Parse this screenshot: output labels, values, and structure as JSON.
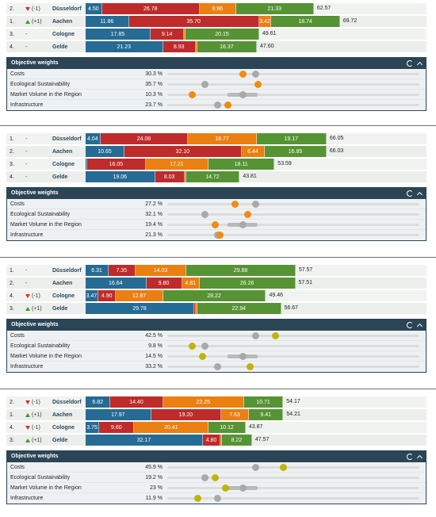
{
  "panel": {
    "title": "Objective weights",
    "refresh_icon": "refresh-icon",
    "collapse_icon": "chevron-up-icon"
  },
  "colors": {
    "costs": "#266b94",
    "ecological": "#be2b2b",
    "market": "#ea7f12",
    "infrastructure": "#569334",
    "purple": "#6b4a9e"
  },
  "sections": [
    {
      "rankings": [
        {
          "rank": "2.",
          "change": "(-1)",
          "direction": "down",
          "city": "Düsseldorf",
          "segments": [
            "4.50",
            "26.78",
            "9.96",
            "21.33"
          ],
          "total": "62.57"
        },
        {
          "rank": "1.",
          "change": "(+1)",
          "direction": "up",
          "city": "Aachen",
          "segments": [
            "11.86",
            "35.70",
            "3.42",
            "18.74"
          ],
          "total": "69.72"
        },
        {
          "rank": "3.",
          "change": "-",
          "direction": "none",
          "city": "Cologne",
          "segments": [
            "17.85",
            "9.14",
            "",
            "20.15"
          ],
          "total": "49.61"
        },
        {
          "rank": "4.",
          "change": "-",
          "direction": "none",
          "city": "Gelde",
          "segments": [
            "21.23",
            "8.93",
            "",
            "16.37"
          ],
          "total": "47.60"
        }
      ],
      "weights": [
        {
          "label": "Costs",
          "value": "30.3 %",
          "dot": 0.3,
          "ref": 0.35
        },
        {
          "label": "Ecological Sustainability",
          "value": "35.7 %",
          "dot": 0.36,
          "ref": 0.15
        },
        {
          "label": "Market Volume in the Region",
          "value": "10.3 %",
          "dot": 0.1,
          "ref": 0.3
        },
        {
          "label": "Infrastructure",
          "value": "23.7 %",
          "dot": 0.24,
          "ref": 0.2
        }
      ]
    },
    {
      "rankings": [
        {
          "rank": "1.",
          "change": "-",
          "direction": "none",
          "city": "Düsseldorf",
          "segments": [
            "4.04",
            "24.08",
            "18.77",
            "19.17"
          ],
          "total": "66.05"
        },
        {
          "rank": "2.",
          "change": "-",
          "direction": "none",
          "city": "Aachen",
          "segments": [
            "10.65",
            "32.10",
            "6.44",
            "16.85"
          ],
          "total": "66.03"
        },
        {
          "rank": "3.",
          "change": "-",
          "direction": "none",
          "city": "Cologne",
          "segments": [
            "",
            "16.05",
            "17.21",
            "18.11"
          ],
          "total": "53.59"
        },
        {
          "rank": "4.",
          "change": "-",
          "direction": "none",
          "city": "Gelde",
          "segments": [
            "19.06",
            "8.03",
            "",
            "14.72"
          ],
          "total": "43.81"
        }
      ],
      "weights": [
        {
          "label": "Costs",
          "value": "27.2 %",
          "dot": 0.27,
          "ref": 0.35
        },
        {
          "label": "Ecological Sustainability",
          "value": "32.1 %",
          "dot": 0.32,
          "ref": 0.15
        },
        {
          "label": "Market Volume in the Region",
          "value": "19.4 %",
          "dot": 0.19,
          "ref": 0.3
        },
        {
          "label": "Infrastructure",
          "value": "21.3 %",
          "dot": 0.21,
          "ref": 0.2
        }
      ]
    },
    {
      "rankings": [
        {
          "rank": "1.",
          "change": "-",
          "direction": "none",
          "city": "Düsseldorf",
          "segments": [
            "6.31",
            "7.35",
            "14.03",
            "29.88"
          ],
          "total": "57.57"
        },
        {
          "rank": "2.",
          "change": "-",
          "direction": "none",
          "city": "Aachen",
          "segments": [
            "16.64",
            "9.80",
            "4.81",
            "26.26"
          ],
          "total": "57.51"
        },
        {
          "rank": "4.",
          "change": "(-1)",
          "direction": "down",
          "city": "Cologne",
          "segments": [
            "3.47",
            "4.90",
            "12.87",
            "28.22"
          ],
          "total": "49.46"
        },
        {
          "rank": "3.",
          "change": "(+1)",
          "direction": "up",
          "city": "Gelde",
          "segments": [
            "29.78",
            "",
            "",
            "22.94"
          ],
          "total": "56.67"
        }
      ],
      "weights": [
        {
          "label": "Costs",
          "value": "42.5 %",
          "dot": 0.43,
          "ref": 0.35
        },
        {
          "label": "Ecological Sustainability",
          "value": "9.8 %",
          "dot": 0.1,
          "ref": 0.15
        },
        {
          "label": "Market Volume in the Region",
          "value": "14.5 %",
          "dot": 0.14,
          "ref": 0.3
        },
        {
          "label": "Infrastructure",
          "value": "33.2 %",
          "dot": 0.33,
          "ref": 0.2
        }
      ]
    },
    {
      "rankings": [
        {
          "rank": "2.",
          "change": "(-1)",
          "direction": "down",
          "city": "Düsseldorf",
          "segments": [
            "6.82",
            "14.40",
            "22.25",
            "10.71"
          ],
          "total": "54.17"
        },
        {
          "rank": "1.",
          "change": "(+1)",
          "direction": "up",
          "city": "Aachen",
          "segments": [
            "17.97",
            "19.20",
            "7.63",
            "9.41"
          ],
          "total": "54.21"
        },
        {
          "rank": "4.",
          "change": "(-1)",
          "direction": "down",
          "city": "Cologne",
          "segments": [
            "3.75",
            "9.60",
            "20.41",
            "10.12"
          ],
          "total": "43.87"
        },
        {
          "rank": "3.",
          "change": "(+1)",
          "direction": "up",
          "city": "Gelde",
          "segments": [
            "32.17",
            "4.80",
            "",
            "8.22"
          ],
          "total": "47.57"
        }
      ],
      "weights": [
        {
          "label": "Costs",
          "value": "45.9 %",
          "dot": 0.46,
          "ref": 0.35
        },
        {
          "label": "Ecological Sustainability",
          "value": "19.2 %",
          "dot": 0.19,
          "ref": 0.15
        },
        {
          "label": "Market Volume in the Region",
          "value": "23 %",
          "dot": 0.23,
          "ref": 0.3
        },
        {
          "label": "Infrastructure",
          "value": "11.9 %",
          "dot": 0.12,
          "ref": 0.2
        }
      ]
    }
  ]
}
